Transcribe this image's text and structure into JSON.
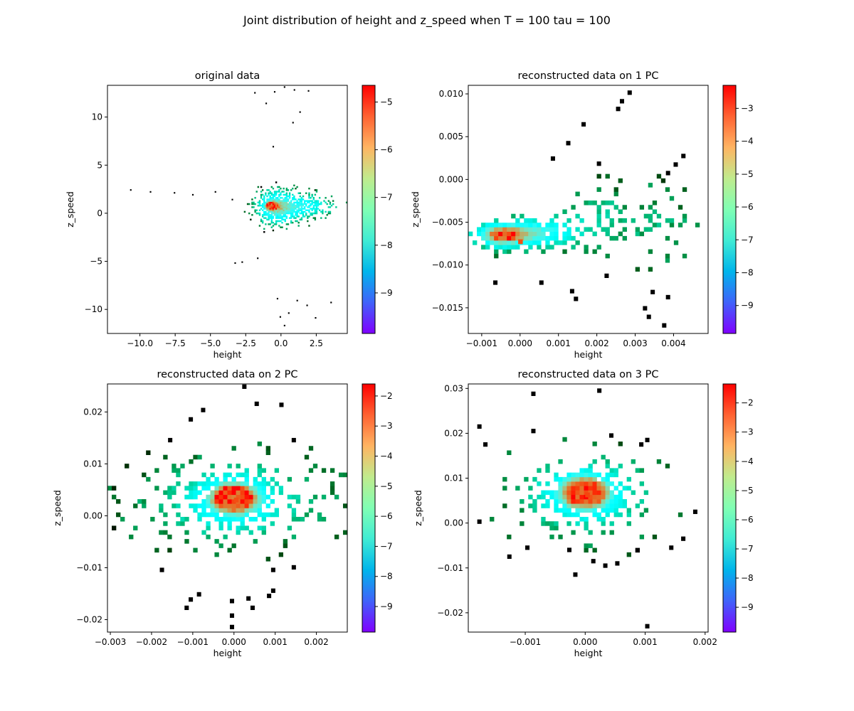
{
  "figure": {
    "suptitle": "Joint distribution of height and z_speed when T = 100 tau = 100"
  },
  "colormap": "rainbow",
  "chart_data": [
    {
      "type": "heatmap",
      "title": "original data",
      "xlabel": "height",
      "ylabel": "z_speed",
      "xlim": [
        -12.3,
        4.7
      ],
      "ylim": [
        -12.5,
        13.3
      ],
      "xticks": [
        -10.0,
        -7.5,
        -5.0,
        -2.5,
        0.0,
        2.5
      ],
      "xticklabels": [
        "−10.0",
        "−7.5",
        "−5.0",
        "−2.5",
        "0.0",
        "2.5"
      ],
      "yticks": [
        -10,
        -5,
        0,
        5,
        10
      ],
      "yticklabels": [
        "−10",
        "−5",
        "0",
        "5",
        "10"
      ],
      "colorbar": {
        "range": [
          -9.85,
          -4.65
        ],
        "ticks": [
          -9,
          -8,
          -7,
          -6,
          -5
        ],
        "ticklabels": [
          "−9",
          "−8",
          "−7",
          "−6",
          "−5"
        ]
      },
      "bins": 160,
      "center": [
        -0.7,
        0.8
      ],
      "peak": -4.8,
      "clusters": [
        {
          "x": -0.7,
          "y": 0.8,
          "sx": 0.25,
          "sy": 0.25,
          "w": 1.0
        },
        {
          "x": -0.4,
          "y": 0.6,
          "sx": 0.8,
          "sy": 1.1,
          "w": 0.55
        },
        {
          "x": 0.9,
          "y": 0.7,
          "sx": 1.4,
          "sy": 0.9,
          "w": 0.4
        },
        {
          "x": 2.2,
          "y": 0.8,
          "sx": 1.1,
          "sy": 0.6,
          "w": 0.2
        }
      ],
      "outliers": [
        [
          -10.7,
          2.5
        ],
        [
          -9.3,
          2.3
        ],
        [
          -7.6,
          2.2
        ],
        [
          -6.3,
          2.0
        ],
        [
          -4.7,
          2.3
        ],
        [
          -3.5,
          1.5
        ],
        [
          -3.3,
          -5.1
        ],
        [
          -2.8,
          -5.0
        ],
        [
          -1.9,
          12.6
        ],
        [
          -1.1,
          11.5
        ],
        [
          -0.5,
          12.7
        ],
        [
          0.2,
          13.2
        ],
        [
          0.9,
          12.9
        ],
        [
          1.3,
          10.6
        ],
        [
          1.9,
          12.8
        ],
        [
          -0.3,
          -8.8
        ],
        [
          -0.1,
          -10.7
        ],
        [
          0.2,
          -11.6
        ],
        [
          0.5,
          -10.3
        ],
        [
          1.1,
          -9.0
        ],
        [
          1.8,
          -9.5
        ],
        [
          2.4,
          -10.8
        ],
        [
          3.5,
          -9.2
        ],
        [
          -1.7,
          -4.6
        ],
        [
          -0.6,
          7.0
        ],
        [
          0.8,
          9.5
        ]
      ]
    },
    {
      "type": "heatmap",
      "title": "reconstructed data on 1 PC",
      "xlabel": "height",
      "ylabel": "z_speed",
      "xlim": [
        -0.00135,
        0.0049
      ],
      "ylim": [
        -0.018,
        0.011
      ],
      "xticks": [
        -0.001,
        0.0,
        0.001,
        0.002,
        0.003,
        0.004
      ],
      "xticklabels": [
        "−0.001",
        "0.000",
        "0.001",
        "0.002",
        "0.003",
        "0.004"
      ],
      "yticks": [
        -0.015,
        -0.01,
        -0.005,
        0.0,
        0.005,
        0.01
      ],
      "yticklabels": [
        "−0.015",
        "−0.010",
        "−0.005",
        "0.000",
        "0.005",
        "0.010"
      ],
      "colorbar": {
        "range": [
          -9.85,
          -2.3
        ],
        "ticks": [
          -9,
          -8,
          -7,
          -6,
          -5,
          -4,
          -3
        ],
        "ticklabels": [
          "−9",
          "−8",
          "−7",
          "−6",
          "−5",
          "−4",
          "−3"
        ]
      },
      "bins": 56,
      "center": [
        -5e-05,
        -0.007
      ],
      "peak": -2.5,
      "clusters": [
        {
          "x": -0.0005,
          "y": -0.0065,
          "sx": 0.00045,
          "sy": 0.0009,
          "w": 1.0
        },
        {
          "x": 0.0005,
          "y": -0.0062,
          "sx": 0.0006,
          "sy": 0.0011,
          "w": 0.6
        },
        {
          "x": 0.0019,
          "y": -0.0045,
          "sx": 0.0006,
          "sy": 0.0025,
          "w": 0.18
        },
        {
          "x": 0.0036,
          "y": -0.0055,
          "sx": 0.0007,
          "sy": 0.0035,
          "w": 0.12
        }
      ],
      "outliers": [
        [
          -0.0007,
          -0.0118
        ],
        [
          0.0005,
          -0.0118
        ],
        [
          0.0013,
          -0.0128
        ],
        [
          0.0014,
          -0.0137
        ],
        [
          0.0016,
          0.0067
        ],
        [
          0.0012,
          0.0045
        ],
        [
          0.0008,
          0.0027
        ],
        [
          0.002,
          0.0021
        ],
        [
          0.0025,
          0.0085
        ],
        [
          0.0026,
          0.0094
        ],
        [
          0.0028,
          0.0104
        ],
        [
          0.0032,
          -0.0148
        ],
        [
          0.0033,
          -0.0158
        ],
        [
          0.0037,
          -0.0168
        ],
        [
          0.0034,
          -0.0129
        ],
        [
          0.0038,
          -0.0135
        ],
        [
          0.0042,
          0.003
        ],
        [
          0.004,
          0.002
        ],
        [
          0.0038,
          0.001
        ],
        [
          0.0022,
          -0.011
        ]
      ]
    },
    {
      "type": "heatmap",
      "title": "reconstructed data on 2 PC",
      "xlabel": "height",
      "ylabel": "z_speed",
      "xlim": [
        -0.00307,
        0.00275
      ],
      "ylim": [
        -0.0224,
        0.0254
      ],
      "xticks": [
        -0.003,
        -0.002,
        -0.001,
        0.0,
        0.001,
        0.002
      ],
      "xticklabels": [
        "−0.003",
        "−0.002",
        "−0.001",
        "0.000",
        "0.001",
        "0.002"
      ],
      "yticks": [
        -0.02,
        -0.01,
        0.0,
        0.01,
        0.02
      ],
      "yticklabels": [
        "−0.02",
        "−0.01",
        "0.00",
        "0.01",
        "0.02"
      ],
      "colorbar": {
        "range": [
          -9.85,
          -1.6
        ],
        "ticks": [
          -9,
          -8,
          -7,
          -6,
          -5,
          -4,
          -3,
          -2
        ],
        "ticklabels": [
          "−9",
          "−8",
          "−7",
          "−6",
          "−5",
          "−4",
          "−3",
          "−2"
        ]
      },
      "bins": 56,
      "center": [
        0.0,
        0.0035
      ],
      "peak": -1.8,
      "clusters": [
        {
          "x": 0.0,
          "y": 0.0035,
          "sx": 0.00035,
          "sy": 0.0018,
          "w": 1.0
        },
        {
          "x": 0.0,
          "y": 0.003,
          "sx": 0.0007,
          "sy": 0.0035,
          "w": 0.5
        },
        {
          "x": -0.0012,
          "y": 0.002,
          "sx": 0.0012,
          "sy": 0.006,
          "w": 0.12
        },
        {
          "x": 0.0012,
          "y": 0.003,
          "sx": 0.0011,
          "sy": 0.006,
          "w": 0.12
        }
      ],
      "outliers": [
        [
          -0.0008,
          0.0208
        ],
        [
          0.0005,
          0.022
        ],
        [
          0.0002,
          0.0253
        ],
        [
          0.0011,
          0.0218
        ],
        [
          -0.0011,
          0.019
        ],
        [
          -0.0016,
          0.015
        ],
        [
          -0.0001,
          -0.021
        ],
        [
          -0.0001,
          -0.0188
        ],
        [
          -0.0001,
          -0.016
        ],
        [
          0.0003,
          -0.0155
        ],
        [
          0.0004,
          -0.0173
        ],
        [
          0.0008,
          -0.015
        ],
        [
          0.0009,
          -0.014
        ],
        [
          -0.0009,
          -0.0147
        ],
        [
          -0.0011,
          -0.0157
        ],
        [
          -0.0012,
          -0.0173
        ],
        [
          0.0009,
          -0.01
        ],
        [
          0.0014,
          -0.0095
        ],
        [
          -0.0018,
          -0.01
        ],
        [
          0.0014,
          0.015
        ]
      ]
    },
    {
      "type": "heatmap",
      "title": "reconstructed data on 3 PC",
      "xlabel": "height",
      "ylabel": "z_speed",
      "xlim": [
        -0.00195,
        0.00205
      ],
      "ylim": [
        -0.0243,
        0.031
      ],
      "xticks": [
        -0.001,
        0.0,
        0.001,
        0.002
      ],
      "xticklabels": [
        "−0.001",
        "0.000",
        "0.001",
        "0.002"
      ],
      "yticks": [
        -0.02,
        -0.01,
        0.0,
        0.01,
        0.02,
        0.03
      ],
      "yticklabels": [
        "−0.02",
        "−0.01",
        "0.00",
        "0.01",
        "0.02",
        "0.03"
      ],
      "colorbar": {
        "range": [
          -9.85,
          -1.35
        ],
        "ticks": [
          -9,
          -8,
          -7,
          -6,
          -5,
          -4,
          -3,
          -2
        ],
        "ticklabels": [
          "−9",
          "−8",
          "−7",
          "−6",
          "−5",
          "−4",
          "−3",
          "−2"
        ]
      },
      "bins": 56,
      "center": [
        0.0,
        0.0068
      ],
      "peak": -1.5,
      "clusters": [
        {
          "x": 0.0,
          "y": 0.0068,
          "sx": 0.00025,
          "sy": 0.0022,
          "w": 1.0
        },
        {
          "x": 0.0,
          "y": 0.0065,
          "sx": 0.0005,
          "sy": 0.004,
          "w": 0.5
        },
        {
          "x": 0.0,
          "y": 0.006,
          "sx": 0.0009,
          "sy": 0.008,
          "w": 0.12
        }
      ],
      "outliers": [
        [
          -0.0009,
          0.0293
        ],
        [
          0.0002,
          0.03
        ],
        [
          0.0004,
          0.02
        ],
        [
          -0.0018,
          0.022
        ],
        [
          -0.0017,
          0.018
        ],
        [
          -0.0009,
          0.021
        ],
        [
          0.001,
          0.019
        ],
        [
          0.0009,
          0.018
        ],
        [
          -0.0013,
          -0.007
        ],
        [
          -0.001,
          -0.005
        ],
        [
          -0.0002,
          -0.011
        ],
        [
          0.0001,
          -0.008
        ],
        [
          0.0003,
          -0.009
        ],
        [
          0.0005,
          -0.0085
        ],
        [
          0.001,
          -0.0225
        ],
        [
          0.0014,
          -0.005
        ],
        [
          -0.0003,
          -0.0055
        ],
        [
          0.0018,
          0.003
        ],
        [
          0.0016,
          -0.003
        ],
        [
          -0.0018,
          0.0008
        ]
      ]
    }
  ]
}
